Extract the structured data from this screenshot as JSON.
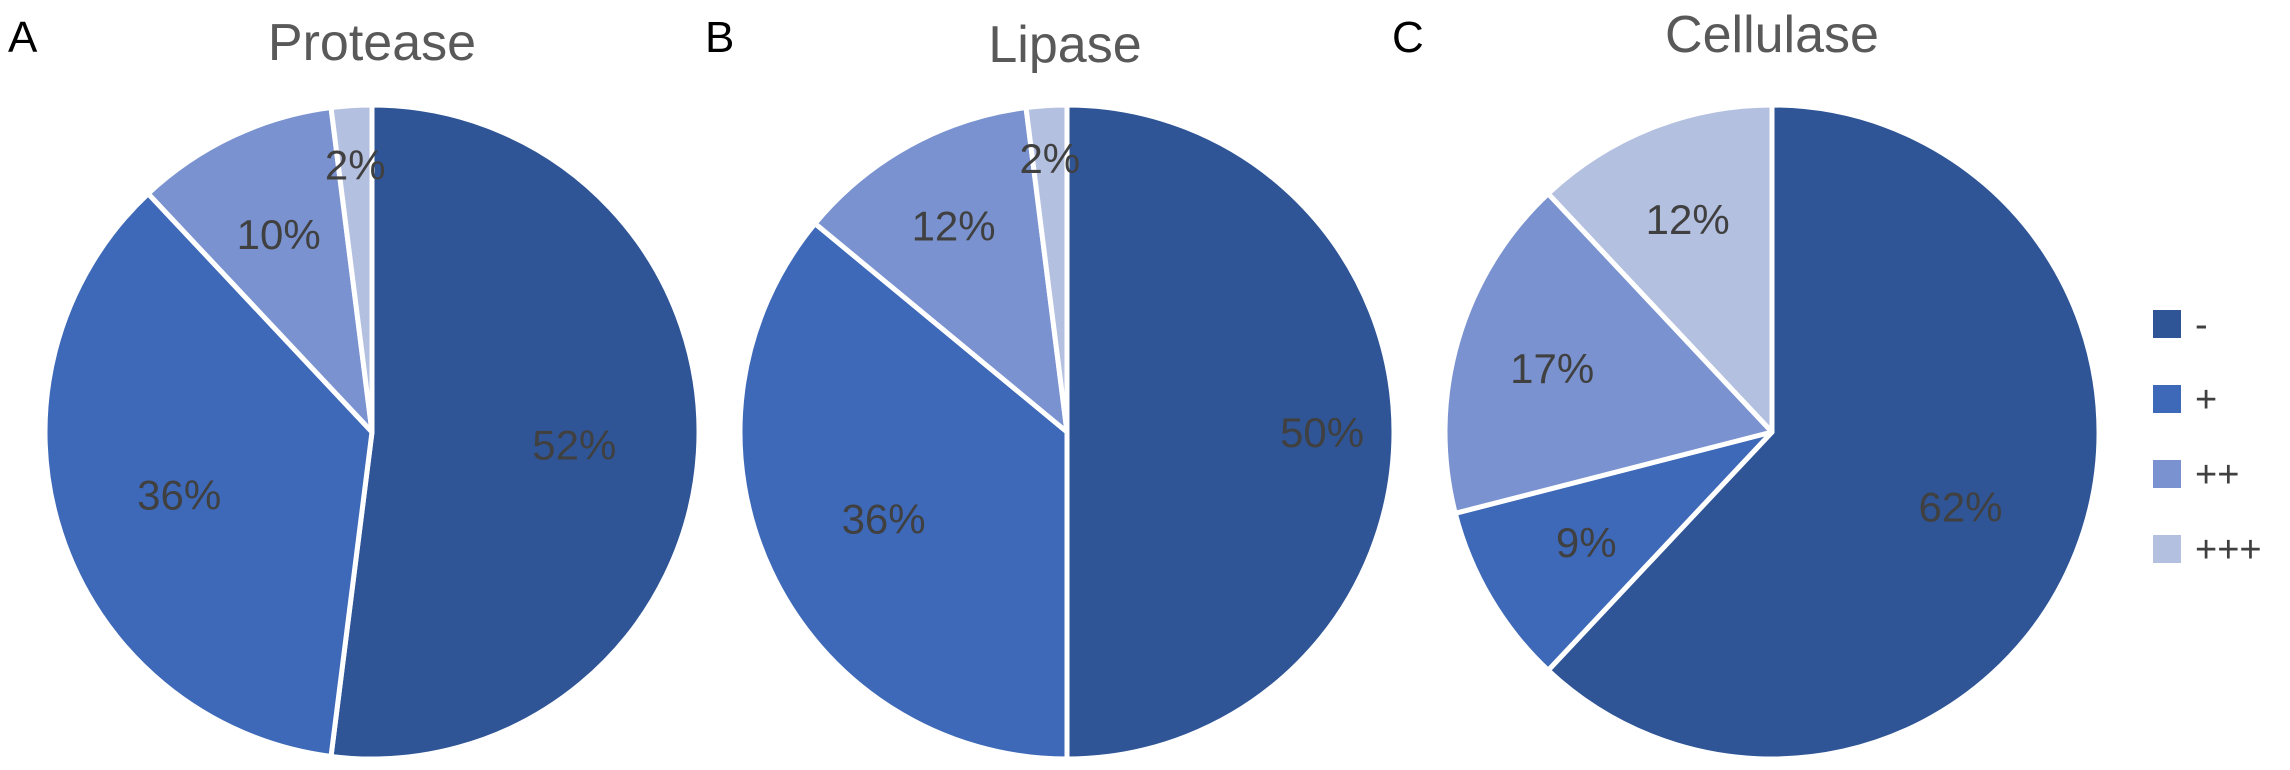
{
  "chart_data": [
    {
      "type": "pie",
      "panel": "A",
      "title": "Protease",
      "categories": [
        "-",
        "+",
        "++",
        "+++"
      ],
      "values": [
        52,
        36,
        10,
        2
      ],
      "labels": [
        "52%",
        "36%",
        "10%",
        "2%"
      ]
    },
    {
      "type": "pie",
      "panel": "B",
      "title": "Lipase",
      "categories": [
        "-",
        "+",
        "++",
        "+++"
      ],
      "values": [
        50,
        36,
        12,
        2
      ],
      "labels": [
        "50%",
        "36%",
        "12%",
        "2%"
      ]
    },
    {
      "type": "pie",
      "panel": "C",
      "title": "Cellulase",
      "categories": [
        "-",
        "+",
        "++",
        "+++"
      ],
      "values": [
        62,
        9,
        17,
        12
      ],
      "labels": [
        "62%",
        "9%",
        "17%",
        "12%"
      ]
    }
  ],
  "legend": {
    "placement": "right",
    "items": [
      {
        "label": "-",
        "color": "#2F5597"
      },
      {
        "label": "+",
        "color": "#3E69B8"
      },
      {
        "label": "++",
        "color": "#7A93D0"
      },
      {
        "label": "+++",
        "color": "#B4C0E0"
      }
    ]
  }
}
